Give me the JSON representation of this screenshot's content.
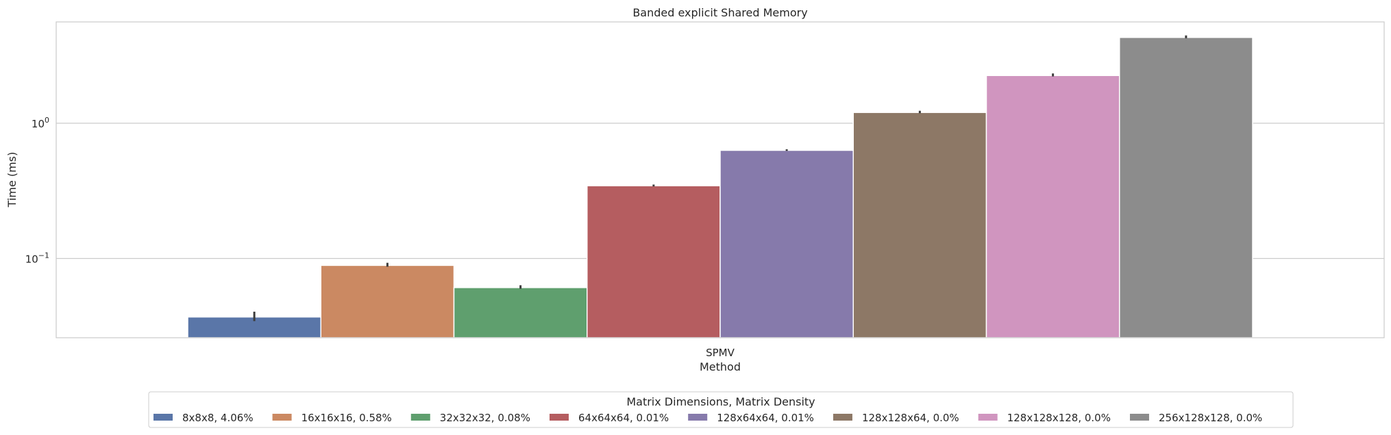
{
  "chart_data": {
    "type": "bar",
    "title": "Banded explicit Shared Memory",
    "xlabel": "Method",
    "ylabel": "Time (ms)",
    "yscale": "log",
    "ylim": [
      0.026,
      5.6
    ],
    "yticks": [
      {
        "value": 0.1,
        "base": "10",
        "exp": "−1"
      },
      {
        "value": 1,
        "base": "10",
        "exp": "0"
      }
    ],
    "grid": true,
    "categories": [
      "SPMV"
    ],
    "legend_title": "Matrix Dimensions, Matrix Density",
    "legend_position": "bottom-center",
    "series": [
      {
        "name": "8x8x8, 4.06%",
        "value": 0.037,
        "err": [
          0.0345,
          0.0405
        ],
        "color": "#5a76a8"
      },
      {
        "name": "16x16x16, 0.58%",
        "value": 0.089,
        "err": [
          0.087,
          0.093
        ],
        "color": "#cb8962"
      },
      {
        "name": "32x32x32, 0.08%",
        "value": 0.061,
        "err": [
          0.0598,
          0.0635
        ],
        "color": "#5f9f6e"
      },
      {
        "name": "64x64x64, 0.01%",
        "value": 0.345,
        "err": [
          0.341,
          0.352
        ],
        "color": "#b55d60"
      },
      {
        "name": "128x64x64, 0.01%",
        "value": 0.63,
        "err": [
          0.624,
          0.642
        ],
        "color": "#867aab"
      },
      {
        "name": "128x128x64, 0.0%",
        "value": 1.2,
        "err": [
          1.185,
          1.235
        ],
        "color": "#8d7866"
      },
      {
        "name": "128x128x128, 0.0%",
        "value": 2.25,
        "err": [
          2.215,
          2.33
        ],
        "color": "#d095bf"
      },
      {
        "name": "256x128x128, 0.0%",
        "value": 4.3,
        "err": [
          4.24,
          4.45
        ],
        "color": "#8c8c8c"
      }
    ]
  }
}
